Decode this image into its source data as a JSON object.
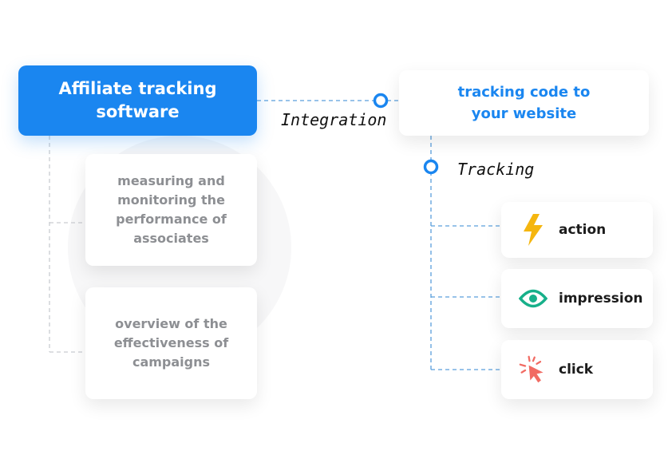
{
  "main_box": {
    "label": "Affiliate tracking software"
  },
  "features": [
    {
      "label": "measuring and monitoring the performance of associates"
    },
    {
      "label": "overview of the effectiveness of campaigns"
    }
  ],
  "integration_label": "Integration",
  "target_box": {
    "label": "tracking code to your website"
  },
  "tracking_label": "Tracking",
  "tracking_items": [
    {
      "label": "action",
      "icon": "lightning-icon",
      "color": "#f5b60f"
    },
    {
      "label": "impression",
      "icon": "eye-icon",
      "color": "#17b08a"
    },
    {
      "label": "click",
      "icon": "cursor-click-icon",
      "color": "#f16b63"
    }
  ],
  "colors": {
    "accent": "#1a86f0",
    "connector": "#5a9fdc"
  }
}
